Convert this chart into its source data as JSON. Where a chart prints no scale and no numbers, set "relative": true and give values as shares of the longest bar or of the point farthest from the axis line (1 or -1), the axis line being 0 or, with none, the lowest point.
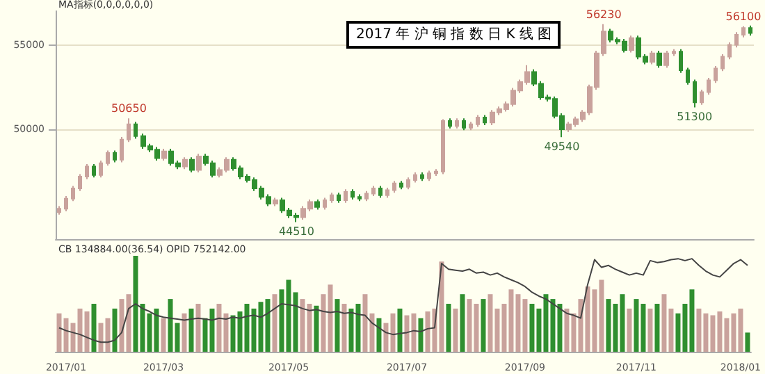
{
  "chart_data": [
    {
      "type": "candlestick",
      "title": "2017 年 沪 铜 指 数 日 K 线 图",
      "ylim": [
        43500,
        57000
      ],
      "yticks": [
        50000,
        55000
      ],
      "grid": "y",
      "tick_labels": "y",
      "categories": [
        null,
        null,
        null,
        null,
        null,
        null,
        null,
        null,
        null,
        null,
        null,
        null,
        null,
        null,
        null,
        null,
        null,
        null,
        null,
        null,
        null,
        null,
        null,
        null,
        null,
        null,
        null,
        null,
        null,
        null,
        null,
        null,
        null,
        null,
        null,
        null,
        null,
        null,
        null,
        null,
        null,
        null,
        null,
        null,
        null,
        null,
        null,
        null,
        null,
        null,
        null,
        null,
        null,
        null,
        null,
        null,
        null,
        null,
        null,
        null,
        null,
        null,
        null,
        null,
        null,
        null,
        null,
        null,
        null,
        null,
        null,
        null,
        null,
        null,
        null,
        null,
        null,
        null,
        null,
        null,
        null,
        null,
        null,
        null,
        null,
        null,
        null,
        null,
        null,
        null,
        null,
        null,
        null,
        null,
        null,
        null,
        null,
        null,
        null,
        null
      ],
      "annotations": [
        "MA指标(0,0,0,0,0,0)",
        {
          "text": "50650",
          "y": 50650
        },
        {
          "text": "44510",
          "y": 44510
        },
        {
          "text": "56230",
          "y": 56230
        },
        {
          "text": "49540",
          "y": 49540
        },
        {
          "text": "51300",
          "y": 51300
        },
        {
          "text": "56100",
          "y": 56100
        }
      ],
      "colors": [
        "#c9a29c",
        "#c9a29c",
        "#c9a29c",
        "#c9a29c",
        "#c9a29c",
        "#2f8f2f",
        "#c9a29c",
        "#c9a29c",
        "#2f8f2f",
        "#c9a29c",
        "#c9a29c",
        "#2f8f2f",
        "#2f8f2f",
        "#2f8f2f",
        "#2f8f2f",
        "#c9a29c",
        "#2f8f2f",
        "#2f8f2f",
        "#c9a29c",
        "#2f8f2f",
        "#c9a29c",
        "#2f8f2f",
        "#2f8f2f",
        "#c9a29c",
        "#c9a29c",
        "#2f8f2f",
        "#2f8f2f",
        "#2f8f2f",
        "#2f8f2f",
        "#2f8f2f",
        "#2f8f2f",
        "#c9a29c",
        "#2f8f2f",
        "#2f8f2f",
        "#2f8f2f",
        "#c9a29c",
        "#c9a29c",
        "#2f8f2f",
        "#c9a29c",
        "#c9a29c",
        "#2f8f2f",
        "#c9a29c",
        "#2f8f2f",
        "#2f8f2f",
        "#c9a29c",
        "#c9a29c",
        "#2f8f2f",
        "#c9a29c",
        "#c9a29c",
        "#2f8f2f",
        "#c9a29c",
        "#c9a29c",
        "#2f8f2f",
        "#c9a29c",
        "#c9a29c",
        "#c9a29c",
        "#2f8f2f",
        "#c9a29c",
        "#2f8f2f",
        "#c9a29c",
        "#c9a29c",
        "#2f8f2f",
        "#c9a29c",
        "#c9a29c",
        "#c9a29c",
        "#c9a29c",
        "#c9a29c",
        "#c9a29c",
        "#2f8f2f",
        "#2f8f2f",
        "#2f8f2f",
        "#2f8f2f",
        "#2f8f2f",
        "#c9a29c",
        "#c9a29c",
        "#c9a29c",
        "#c9a29c",
        "#c9a29c",
        "#c9a29c",
        "#2f8f2f",
        "#2f8f2f",
        "#2f8f2f",
        "#c9a29c",
        "#2f8f2f",
        "#2f8f2f",
        "#c9a29c",
        "#2f8f2f",
        "#c9a29c",
        "#c9a29c",
        "#2f8f2f",
        "#2f8f2f",
        "#2f8f2f",
        "#c9a29c",
        "#c9a29c",
        "#c9a29c",
        "#c9a29c",
        "#c9a29c",
        "#c9a29c",
        "#c9a29c",
        "#2f8f2f"
      ],
      "ohlc": [
        [
          45100,
          45450,
          44950,
          45300
        ],
        [
          45300,
          46050,
          45150,
          45900
        ],
        [
          45900,
          46650,
          45750,
          46500
        ],
        [
          46500,
          47350,
          46350,
          47200
        ],
        [
          47200,
          47950,
          47050,
          47800
        ],
        [
          47800,
          47950,
          47150,
          47300
        ],
        [
          47300,
          48150,
          47150,
          48000
        ],
        [
          48000,
          48750,
          47850,
          48600
        ],
        [
          48600,
          48750,
          48050,
          48200
        ],
        [
          48200,
          49550,
          48050,
          49400
        ],
        [
          49400,
          50650,
          49250,
          50300
        ],
        [
          50300,
          50450,
          49450,
          49600
        ],
        [
          49600,
          49750,
          48850,
          49000
        ],
        [
          49000,
          49150,
          48650,
          48800
        ],
        [
          48800,
          48950,
          48150,
          48300
        ],
        [
          48300,
          48850,
          48150,
          48700
        ],
        [
          48700,
          48850,
          47850,
          48000
        ],
        [
          48000,
          48150,
          47650,
          47800
        ],
        [
          47800,
          48350,
          47650,
          48200
        ],
        [
          48200,
          48350,
          47450,
          47600
        ],
        [
          47600,
          48550,
          47450,
          48400
        ],
        [
          48400,
          48550,
          47850,
          48000
        ],
        [
          48000,
          48150,
          47150,
          47300
        ],
        [
          47300,
          47750,
          47150,
          47600
        ],
        [
          47600,
          48350,
          47450,
          48200
        ],
        [
          48200,
          48350,
          47550,
          47700
        ],
        [
          47700,
          47850,
          47050,
          47200
        ],
        [
          47200,
          47350,
          46850,
          47000
        ],
        [
          47000,
          47150,
          46350,
          46500
        ],
        [
          46500,
          46650,
          45850,
          46000
        ],
        [
          46000,
          46150,
          45450,
          45600
        ],
        [
          45600,
          45950,
          45450,
          45800
        ],
        [
          45800,
          45950,
          45050,
          45200
        ],
        [
          45200,
          45350,
          44750,
          44900
        ],
        [
          44900,
          45050,
          44510,
          44800
        ],
        [
          44800,
          45450,
          44650,
          45300
        ],
        [
          45300,
          45850,
          45150,
          45700
        ],
        [
          45700,
          45850,
          45250,
          45400
        ],
        [
          45400,
          45950,
          45250,
          45800
        ],
        [
          45800,
          46250,
          45650,
          46100
        ],
        [
          46100,
          46250,
          45650,
          45800
        ],
        [
          45800,
          46450,
          45650,
          46300
        ],
        [
          46300,
          46450,
          45850,
          46000
        ],
        [
          46000,
          46150,
          45750,
          45900
        ],
        [
          45900,
          46350,
          45750,
          46200
        ],
        [
          46200,
          46650,
          46050,
          46500
        ],
        [
          46500,
          46650,
          45950,
          46100
        ],
        [
          46100,
          46550,
          45950,
          46400
        ],
        [
          46400,
          46950,
          46250,
          46800
        ],
        [
          46800,
          46950,
          46450,
          46600
        ],
        [
          46600,
          47150,
          46450,
          47000
        ],
        [
          47000,
          47450,
          46850,
          47300
        ],
        [
          47300,
          47450,
          46950,
          47100
        ],
        [
          47100,
          47550,
          46950,
          47400
        ],
        [
          47400,
          47650,
          47250,
          47500
        ],
        [
          47500,
          50600,
          47350,
          50500
        ],
        [
          50500,
          50650,
          50050,
          50200
        ],
        [
          50200,
          50650,
          50050,
          50500
        ],
        [
          50500,
          50650,
          49950,
          50100
        ],
        [
          50100,
          50450,
          49950,
          50300
        ],
        [
          50300,
          50850,
          50150,
          50700
        ],
        [
          50700,
          50850,
          50250,
          50400
        ],
        [
          50400,
          51150,
          50250,
          51000
        ],
        [
          51000,
          51350,
          50850,
          51200
        ],
        [
          51200,
          51650,
          51050,
          51500
        ],
        [
          51500,
          52450,
          51350,
          52300
        ],
        [
          52300,
          52950,
          52150,
          52800
        ],
        [
          52800,
          53800,
          52650,
          53400
        ],
        [
          53400,
          53550,
          52550,
          52700
        ],
        [
          52700,
          52850,
          51750,
          51900
        ],
        [
          51900,
          52050,
          51650,
          51800
        ],
        [
          51800,
          51950,
          50650,
          50800
        ],
        [
          50800,
          50950,
          49540,
          50000
        ],
        [
          50000,
          50450,
          49850,
          50300
        ],
        [
          50300,
          50750,
          50150,
          50600
        ],
        [
          50600,
          51150,
          50450,
          51000
        ],
        [
          51000,
          52650,
          50850,
          52500
        ],
        [
          52500,
          54650,
          52350,
          54500
        ],
        [
          54500,
          56230,
          54350,
          55800
        ],
        [
          55800,
          55950,
          55150,
          55300
        ],
        [
          55300,
          55450,
          55050,
          55200
        ],
        [
          55200,
          55350,
          54550,
          54700
        ],
        [
          54700,
          55550,
          54550,
          55400
        ],
        [
          55400,
          55550,
          54150,
          54300
        ],
        [
          54300,
          54450,
          53850,
          54000
        ],
        [
          54000,
          54650,
          53850,
          54500
        ],
        [
          54500,
          54650,
          53650,
          53800
        ],
        [
          53800,
          54650,
          53650,
          54500
        ],
        [
          54500,
          54750,
          54350,
          54600
        ],
        [
          54600,
          54750,
          53350,
          53500
        ],
        [
          53500,
          53650,
          52650,
          52800
        ],
        [
          52800,
          52950,
          51300,
          51600
        ],
        [
          51600,
          52350,
          51450,
          52200
        ],
        [
          52200,
          53050,
          52050,
          52900
        ],
        [
          52900,
          53750,
          52750,
          53600
        ],
        [
          53600,
          54450,
          53450,
          54300
        ],
        [
          54300,
          55150,
          54150,
          55000
        ],
        [
          55000,
          55750,
          54850,
          55600
        ],
        [
          55600,
          56100,
          55450,
          56000
        ],
        [
          56000,
          56150,
          55550,
          55700
        ]
      ]
    },
    {
      "type": "bar",
      "relative": true,
      "tick_labels": "x",
      "categories": [
        null,
        "2017/01",
        null,
        null,
        null,
        null,
        null,
        null,
        null,
        null,
        null,
        null,
        null,
        null,
        null,
        "2017/03",
        null,
        null,
        null,
        null,
        null,
        null,
        null,
        null,
        null,
        null,
        null,
        null,
        null,
        null,
        null,
        null,
        null,
        "2017/05",
        null,
        null,
        null,
        null,
        null,
        null,
        null,
        null,
        null,
        null,
        null,
        null,
        null,
        null,
        null,
        null,
        "2017/07",
        null,
        null,
        null,
        null,
        null,
        null,
        null,
        null,
        null,
        null,
        null,
        null,
        null,
        null,
        null,
        null,
        "2017/09",
        null,
        null,
        null,
        null,
        null,
        null,
        null,
        null,
        null,
        null,
        null,
        null,
        null,
        null,
        null,
        "2017/11",
        null,
        null,
        null,
        null,
        null,
        null,
        null,
        null,
        null,
        null,
        null,
        null,
        null,
        null,
        "2018/01",
        null
      ],
      "annotations": [
        "CB 134884.00(36.54) OPID 752142.00"
      ],
      "series": [
        {
          "type": "bar",
          "colors": [
            "#c9a29c",
            "#c9a29c",
            "#c9a29c",
            "#c9a29c",
            "#c9a29c",
            "#2f8f2f",
            "#c9a29c",
            "#c9a29c",
            "#2f8f2f",
            "#c9a29c",
            "#c9a29c",
            "#2f8f2f",
            "#2f8f2f",
            "#2f8f2f",
            "#2f8f2f",
            "#c9a29c",
            "#2f8f2f",
            "#2f8f2f",
            "#c9a29c",
            "#2f8f2f",
            "#c9a29c",
            "#2f8f2f",
            "#2f8f2f",
            "#c9a29c",
            "#c9a29c",
            "#2f8f2f",
            "#2f8f2f",
            "#2f8f2f",
            "#2f8f2f",
            "#2f8f2f",
            "#2f8f2f",
            "#c9a29c",
            "#2f8f2f",
            "#2f8f2f",
            "#2f8f2f",
            "#c9a29c",
            "#c9a29c",
            "#2f8f2f",
            "#c9a29c",
            "#c9a29c",
            "#2f8f2f",
            "#c9a29c",
            "#2f8f2f",
            "#2f8f2f",
            "#c9a29c",
            "#c9a29c",
            "#2f8f2f",
            "#c9a29c",
            "#c9a29c",
            "#2f8f2f",
            "#c9a29c",
            "#c9a29c",
            "#2f8f2f",
            "#c9a29c",
            "#c9a29c",
            "#c9a29c",
            "#2f8f2f",
            "#c9a29c",
            "#2f8f2f",
            "#c9a29c",
            "#c9a29c",
            "#2f8f2f",
            "#c9a29c",
            "#c9a29c",
            "#c9a29c",
            "#c9a29c",
            "#c9a29c",
            "#c9a29c",
            "#2f8f2f",
            "#2f8f2f",
            "#2f8f2f",
            "#2f8f2f",
            "#2f8f2f",
            "#c9a29c",
            "#c9a29c",
            "#c9a29c",
            "#c9a29c",
            "#c9a29c",
            "#c9a29c",
            "#2f8f2f",
            "#2f8f2f",
            "#2f8f2f",
            "#c9a29c",
            "#2f8f2f",
            "#2f8f2f",
            "#c9a29c",
            "#2f8f2f",
            "#c9a29c",
            "#c9a29c",
            "#2f8f2f",
            "#2f8f2f",
            "#2f8f2f",
            "#c9a29c",
            "#c9a29c",
            "#c9a29c",
            "#c9a29c",
            "#c9a29c",
            "#c9a29c",
            "#c9a29c",
            "#2f8f2f"
          ],
          "values": [
            0.4,
            0.35,
            0.3,
            0.45,
            0.42,
            0.5,
            0.3,
            0.35,
            0.45,
            0.55,
            0.6,
            1.0,
            0.5,
            0.4,
            0.45,
            0.35,
            0.55,
            0.3,
            0.4,
            0.45,
            0.5,
            0.35,
            0.45,
            0.5,
            0.4,
            0.38,
            0.42,
            0.5,
            0.45,
            0.52,
            0.55,
            0.6,
            0.65,
            0.75,
            0.62,
            0.55,
            0.5,
            0.48,
            0.6,
            0.7,
            0.55,
            0.5,
            0.45,
            0.5,
            0.6,
            0.4,
            0.35,
            0.3,
            0.4,
            0.45,
            0.38,
            0.4,
            0.35,
            0.42,
            0.45,
            0.94,
            0.5,
            0.45,
            0.6,
            0.55,
            0.5,
            0.55,
            0.6,
            0.45,
            0.5,
            0.65,
            0.6,
            0.55,
            0.5,
            0.45,
            0.6,
            0.55,
            0.5,
            0.45,
            0.4,
            0.55,
            0.68,
            0.65,
            0.75,
            0.55,
            0.5,
            0.6,
            0.45,
            0.55,
            0.5,
            0.45,
            0.5,
            0.6,
            0.45,
            0.4,
            0.5,
            0.65,
            0.45,
            0.4,
            0.38,
            0.42,
            0.35,
            0.4,
            0.45,
            0.2
          ]
        },
        {
          "type": "line",
          "color": "#444444",
          "values": [
            0.25,
            0.22,
            0.2,
            0.18,
            0.15,
            0.12,
            0.1,
            0.1,
            0.12,
            0.2,
            0.45,
            0.5,
            0.45,
            0.42,
            0.38,
            0.36,
            0.35,
            0.34,
            0.33,
            0.34,
            0.35,
            0.34,
            0.33,
            0.35,
            0.34,
            0.36,
            0.35,
            0.37,
            0.38,
            0.36,
            0.4,
            0.45,
            0.5,
            0.49,
            0.48,
            0.45,
            0.43,
            0.44,
            0.42,
            0.41,
            0.42,
            0.4,
            0.41,
            0.39,
            0.38,
            0.3,
            0.25,
            0.2,
            0.18,
            0.19,
            0.2,
            0.22,
            0.21,
            0.24,
            0.25,
            0.92,
            0.86,
            0.85,
            0.84,
            0.86,
            0.82,
            0.83,
            0.8,
            0.82,
            0.78,
            0.75,
            0.72,
            0.68,
            0.62,
            0.58,
            0.55,
            0.5,
            0.45,
            0.4,
            0.38,
            0.35,
            0.7,
            0.96,
            0.88,
            0.9,
            0.86,
            0.83,
            0.8,
            0.82,
            0.8,
            0.95,
            0.93,
            0.94,
            0.96,
            0.97,
            0.95,
            0.97,
            0.9,
            0.84,
            0.8,
            0.78,
            0.85,
            0.92,
            0.96,
            0.9
          ]
        }
      ]
    }
  ]
}
